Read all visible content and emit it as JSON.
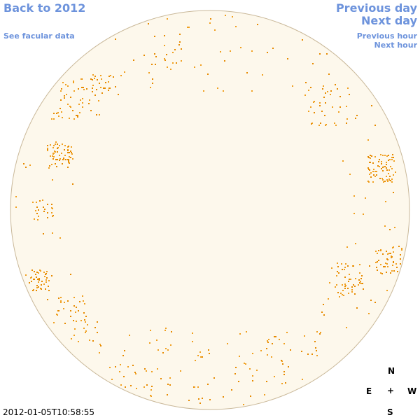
{
  "nav": {
    "back": "Back to 2012",
    "see_facular": "See facular data",
    "previous_day": "Previous day",
    "next_day": "Next day",
    "previous_hour": "Previous hour",
    "next_hour": "Next hour"
  },
  "timestamp": "2012-01-05T10:58:55",
  "compass": {
    "north": "N",
    "east": "E",
    "center": "+",
    "west": "W",
    "south": "S"
  }
}
